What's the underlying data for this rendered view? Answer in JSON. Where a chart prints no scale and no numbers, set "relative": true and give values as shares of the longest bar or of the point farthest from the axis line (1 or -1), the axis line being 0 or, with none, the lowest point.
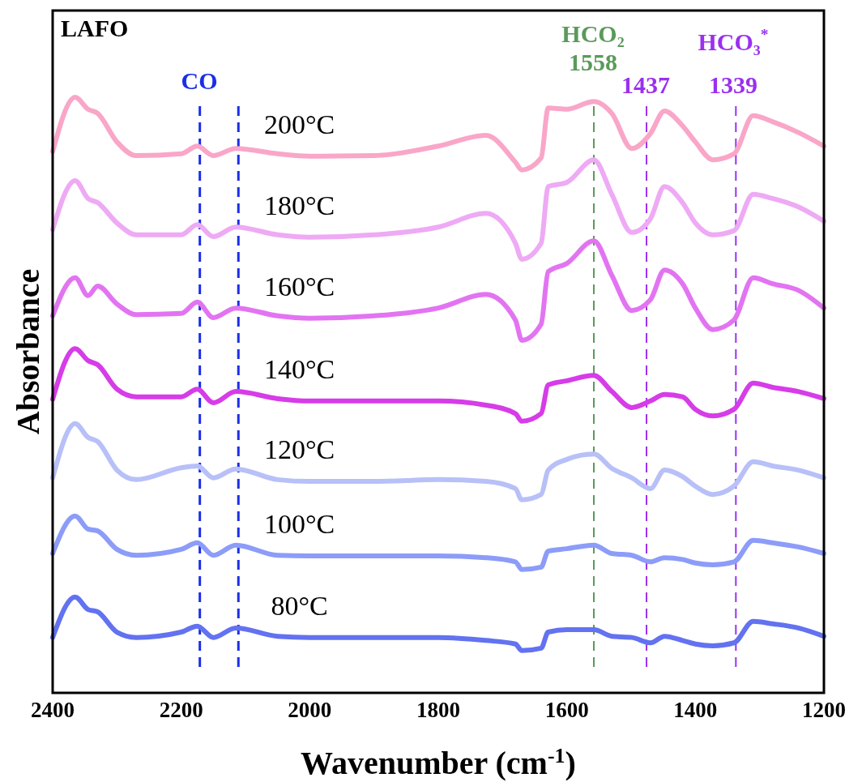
{
  "chart_data": {
    "type": "line",
    "title": "LAFO",
    "xlabel": "Wavenumber (cm$^{-1}$)",
    "ylabel": "Absorbance",
    "relative": true,
    "xlim": [
      2400,
      1200
    ],
    "xticks": [
      2400,
      2200,
      2000,
      1800,
      1600,
      1400,
      1200
    ],
    "grid": false,
    "marker": "none",
    "line_style": "solid",
    "x": [
      2400,
      2365,
      2345,
      2330,
      2300,
      2270,
      2200,
      2175,
      2150,
      2115,
      2050,
      2000,
      1900,
      1800,
      1726,
      1680,
      1670,
      1640,
      1629,
      1600,
      1558,
      1530,
      1499,
      1470,
      1448,
      1420,
      1400,
      1373,
      1340,
      1310,
      1280,
      1240,
      1200
    ],
    "series": [
      {
        "name": "200°C",
        "color": "#f9a6c8",
        "values": [
          0.909,
          1.0,
          0.98,
          0.973,
          0.925,
          0.902,
          0.905,
          0.918,
          0.902,
          0.914,
          0.905,
          0.901,
          0.902,
          0.918,
          0.936,
          0.891,
          0.878,
          0.898,
          0.982,
          0.98,
          0.993,
          0.973,
          0.914,
          0.939,
          0.977,
          0.952,
          0.925,
          0.895,
          0.905,
          0.969,
          0.959,
          0.941,
          0.918
        ]
      },
      {
        "name": "180°C",
        "color": "#eeaaf4",
        "values": [
          0.778,
          0.86,
          0.83,
          0.823,
          0.789,
          0.769,
          0.769,
          0.786,
          0.766,
          0.782,
          0.769,
          0.765,
          0.769,
          0.782,
          0.805,
          0.755,
          0.728,
          0.755,
          0.85,
          0.857,
          0.895,
          0.837,
          0.773,
          0.796,
          0.85,
          0.823,
          0.789,
          0.769,
          0.776,
          0.837,
          0.83,
          0.816,
          0.792
        ]
      },
      {
        "name": "160°C",
        "color": "#e274f2",
        "values": [
          0.633,
          0.697,
          0.667,
          0.683,
          0.653,
          0.635,
          0.637,
          0.656,
          0.63,
          0.646,
          0.633,
          0.629,
          0.633,
          0.646,
          0.669,
          0.626,
          0.592,
          0.619,
          0.707,
          0.721,
          0.759,
          0.701,
          0.642,
          0.66,
          0.71,
          0.687,
          0.646,
          0.61,
          0.626,
          0.697,
          0.687,
          0.676,
          0.646
        ]
      },
      {
        "name": "140°C",
        "color": "#d63ce8",
        "values": [
          0.493,
          0.578,
          0.558,
          0.551,
          0.51,
          0.497,
          0.497,
          0.51,
          0.487,
          0.506,
          0.494,
          0.49,
          0.49,
          0.49,
          0.483,
          0.469,
          0.456,
          0.469,
          0.517,
          0.524,
          0.533,
          0.506,
          0.479,
          0.49,
          0.501,
          0.497,
          0.476,
          0.465,
          0.476,
          0.52,
          0.513,
          0.506,
          0.494
        ]
      },
      {
        "name": "120°C",
        "color": "#b8c0f8",
        "values": [
          0.361,
          0.452,
          0.429,
          0.422,
          0.374,
          0.358,
          0.378,
          0.381,
          0.361,
          0.376,
          0.358,
          0.355,
          0.355,
          0.358,
          0.355,
          0.343,
          0.324,
          0.333,
          0.374,
          0.392,
          0.401,
          0.377,
          0.361,
          0.343,
          0.374,
          0.363,
          0.347,
          0.333,
          0.347,
          0.388,
          0.381,
          0.374,
          0.361
        ]
      },
      {
        "name": "100°C",
        "color": "#8c9cf8",
        "values": [
          0.234,
          0.297,
          0.275,
          0.272,
          0.241,
          0.231,
          0.241,
          0.252,
          0.231,
          0.248,
          0.231,
          0.23,
          0.23,
          0.23,
          0.227,
          0.22,
          0.207,
          0.211,
          0.238,
          0.242,
          0.248,
          0.234,
          0.231,
          0.22,
          0.227,
          0.224,
          0.218,
          0.215,
          0.22,
          0.256,
          0.252,
          0.245,
          0.234
        ]
      },
      {
        "name": "80°C",
        "color": "#6272f0",
        "values": [
          0.093,
          0.161,
          0.14,
          0.136,
          0.102,
          0.093,
          0.102,
          0.112,
          0.093,
          0.109,
          0.095,
          0.093,
          0.093,
          0.093,
          0.088,
          0.082,
          0.071,
          0.075,
          0.102,
          0.106,
          0.106,
          0.095,
          0.093,
          0.084,
          0.095,
          0.088,
          0.082,
          0.079,
          0.084,
          0.12,
          0.116,
          0.109,
          0.095
        ]
      }
    ],
    "ref_lines": [
      {
        "axis": "x",
        "value": 2171,
        "color": "#1a2ee8",
        "line_style": "dashed"
      },
      {
        "axis": "x",
        "value": 2111,
        "color": "#1a2ee8",
        "line_style": "dashed"
      },
      {
        "axis": "x",
        "value": 1558,
        "color": "#5a9a5a",
        "line_style": "dashed"
      },
      {
        "axis": "x",
        "value": 1476,
        "color": "#9a30f0",
        "line_style": "dashed"
      },
      {
        "axis": "x",
        "value": 1337,
        "color": "#9a30f0",
        "line_style": "dashed"
      }
    ],
    "annotations": [
      "CO",
      "HCO₂",
      "1558",
      "1437",
      "HCO₃$^{*}$",
      "1339"
    ]
  }
}
